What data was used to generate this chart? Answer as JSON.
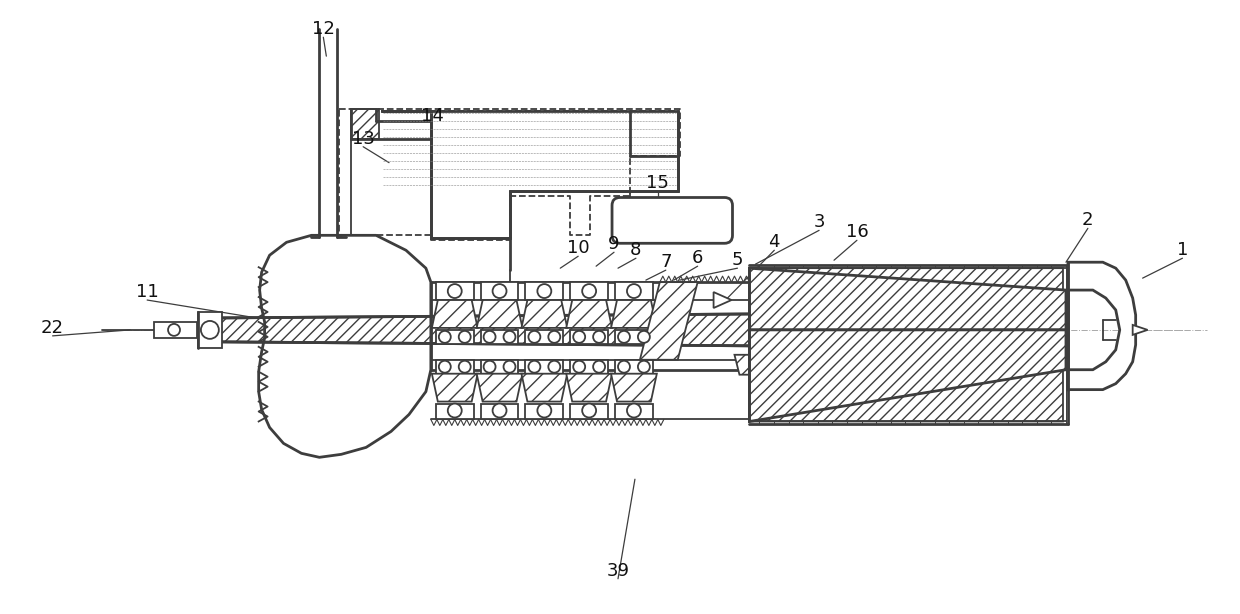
{
  "bg_color": "#ffffff",
  "line_color": "#3d3d3d",
  "label_fontsize": 13,
  "lw": 1.3,
  "tlw": 2.0
}
